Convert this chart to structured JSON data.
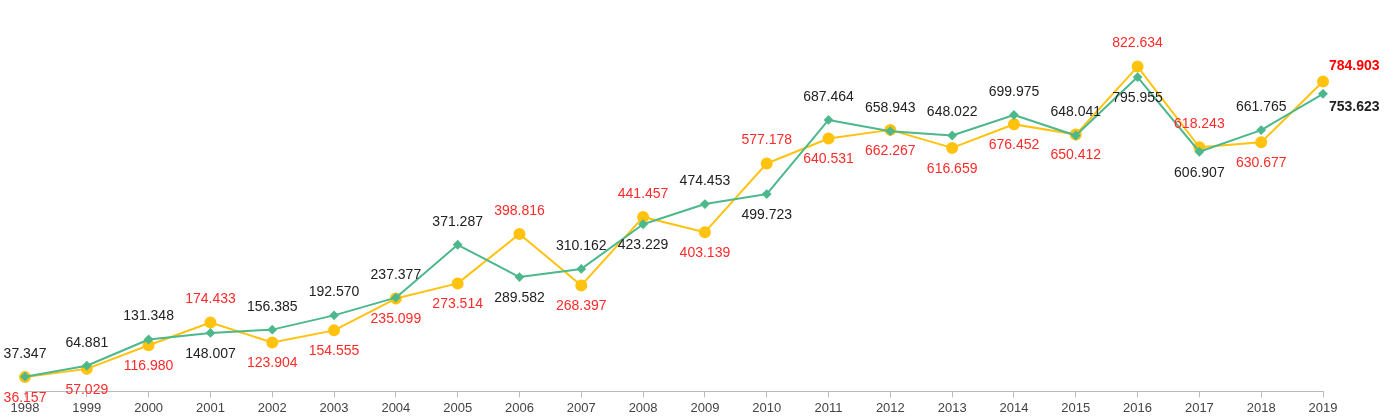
{
  "chart_data": {
    "type": "line",
    "categories": [
      "1998",
      "1999",
      "2000",
      "2001",
      "2002",
      "2003",
      "2004",
      "2005",
      "2006",
      "2007",
      "2008",
      "2009",
      "2010",
      "2011",
      "2012",
      "2013",
      "2014",
      "2015",
      "2016",
      "2017",
      "2018",
      "2019"
    ],
    "tick_labels": "x",
    "grid": false,
    "legend": false,
    "line_style": "solid",
    "series": [
      {
        "color": "#4cb88c",
        "marker": "diamond",
        "values": [
          37.347,
          64.881,
          131.348,
          148.007,
          156.385,
          192.57,
          237.377,
          371.287,
          289.582,
          310.162,
          423.229,
          474.453,
          499.723,
          687.464,
          658.943,
          648.022,
          699.975,
          648.041,
          795.955,
          606.907,
          661.765,
          753.623
        ],
        "value_labels": [
          "37.347",
          "64.881",
          "131.348",
          "148.007",
          "156.385",
          "192.570",
          "237.377",
          "371.287",
          "289.582",
          "310.162",
          "423.229",
          "474.453",
          "499.723",
          "687.464",
          "658.943",
          "648.022",
          "699.975",
          "648.041",
          "795.955",
          "606.907",
          "661.765",
          "753.623"
        ]
      },
      {
        "color": "#ffc20e",
        "marker": "circle",
        "values": [
          36.157,
          57.029,
          116.98,
          174.433,
          123.904,
          154.555,
          235.099,
          273.514,
          398.816,
          268.397,
          441.457,
          403.139,
          577.178,
          640.531,
          662.267,
          616.659,
          676.452,
          650.412,
          822.634,
          618.243,
          630.677,
          784.903
        ],
        "value_labels": [
          "36.157",
          "57.029",
          "116.980",
          "174.433",
          "123.904",
          "154.555",
          "235.099",
          "273.514",
          "398.816",
          "268.397",
          "441.457",
          "403.139",
          "577.178",
          "640.531",
          "662.267",
          "616.659",
          "676.452",
          "650.412",
          "822.634",
          "618.243",
          "630.677",
          "784.903"
        ]
      }
    ]
  }
}
